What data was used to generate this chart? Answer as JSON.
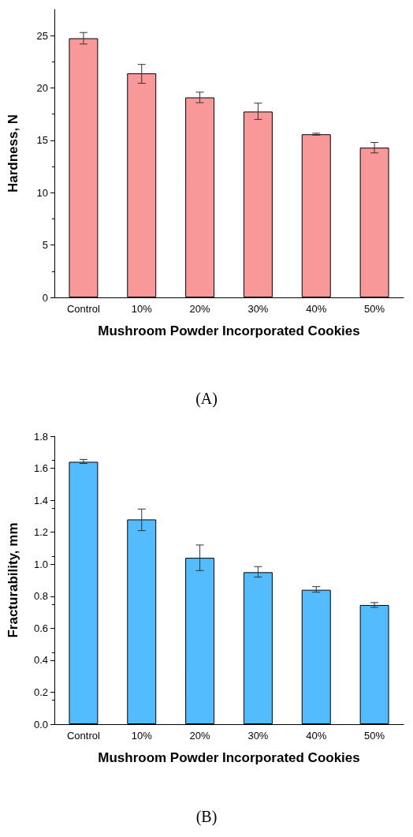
{
  "chart_data": [
    {
      "type": "bar",
      "title": "(A)",
      "xlabel": "Mushroom Powder Incorporated Cookies",
      "ylabel": "Hardness, N",
      "categories": [
        "Control",
        "10%",
        "20%",
        "30%",
        "40%",
        "50%"
      ],
      "series": [
        {
          "color": "#f99898",
          "values": [
            24.75,
            21.4,
            19.1,
            17.75,
            15.58,
            14.3
          ],
          "errors": [
            [
              24.2,
              25.3
            ],
            [
              20.45,
              22.25
            ],
            [
              18.6,
              19.6
            ],
            [
              17.0,
              18.55
            ],
            [
              15.5,
              15.68
            ],
            [
              13.8,
              14.8
            ]
          ]
        }
      ],
      "ylim": [
        0,
        27.5
      ],
      "yticks": [
        0,
        5,
        10,
        15,
        20,
        25
      ],
      "grid": false
    },
    {
      "type": "bar",
      "title": "(B)",
      "xlabel": "Mushroom Powder Incorporated Cookies",
      "ylabel": "Fracturability, mm",
      "categories": [
        "Control",
        "10%",
        "20%",
        "30%",
        "40%",
        "50%"
      ],
      "series": [
        {
          "color": "#52bcff",
          "values": [
            1.64,
            1.28,
            1.04,
            0.95,
            0.84,
            0.745
          ],
          "errors": [
            [
              1.63,
              1.655
            ],
            [
              1.21,
              1.345
            ],
            [
              0.96,
              1.12
            ],
            [
              0.92,
              0.985
            ],
            [
              0.825,
              0.86
            ],
            [
              0.73,
              0.76
            ]
          ]
        }
      ],
      "ylim": [
        0,
        1.8
      ],
      "yticks": [
        {
          "value": 0,
          "label": "0.0"
        },
        0.2,
        0.4,
        0.6,
        0.8,
        {
          "value": 1,
          "label": "1.0"
        },
        1.2,
        1.4,
        1.6,
        1.8
      ],
      "grid": false
    }
  ]
}
